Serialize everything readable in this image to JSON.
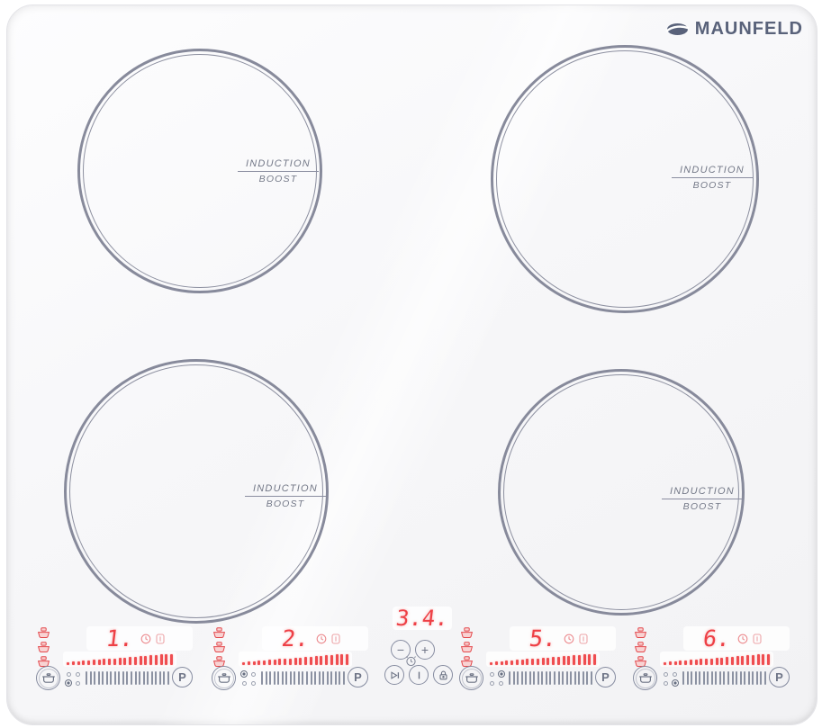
{
  "brand": {
    "name": "MAUNFELD"
  },
  "colors": {
    "led_red": "#ee4046",
    "control_gray": "#868ca0",
    "ring_gray": "#878a9b",
    "logo_slate": "#59627a"
  },
  "burners": [
    {
      "position": "back-left",
      "label_top": "INDUCTION",
      "label_bottom": "BOOST"
    },
    {
      "position": "back-right",
      "label_top": "INDUCTION",
      "label_bottom": "BOOST"
    },
    {
      "position": "front-left",
      "label_top": "INDUCTION",
      "label_bottom": "BOOST"
    },
    {
      "position": "front-right",
      "label_top": "INDUCTION",
      "label_bottom": "BOOST"
    }
  ],
  "controls": {
    "zones": [
      {
        "digit": "1.",
        "boost_label": "P",
        "ramp_ticks": 21,
        "slider_ticks": 21,
        "active_dot": 2
      },
      {
        "digit": "2.",
        "boost_label": "P",
        "ramp_ticks": 21,
        "slider_ticks": 21,
        "active_dot": 0
      },
      {
        "digit": "5.",
        "boost_label": "P",
        "ramp_ticks": 21,
        "slider_ticks": 21,
        "active_dot": 1
      },
      {
        "digit": "6.",
        "boost_label": "P",
        "ramp_ticks": 21,
        "slider_ticks": 21,
        "active_dot": 3
      }
    ],
    "center": {
      "timer_display": "3.4.",
      "minus": "−",
      "plus": "+"
    }
  }
}
